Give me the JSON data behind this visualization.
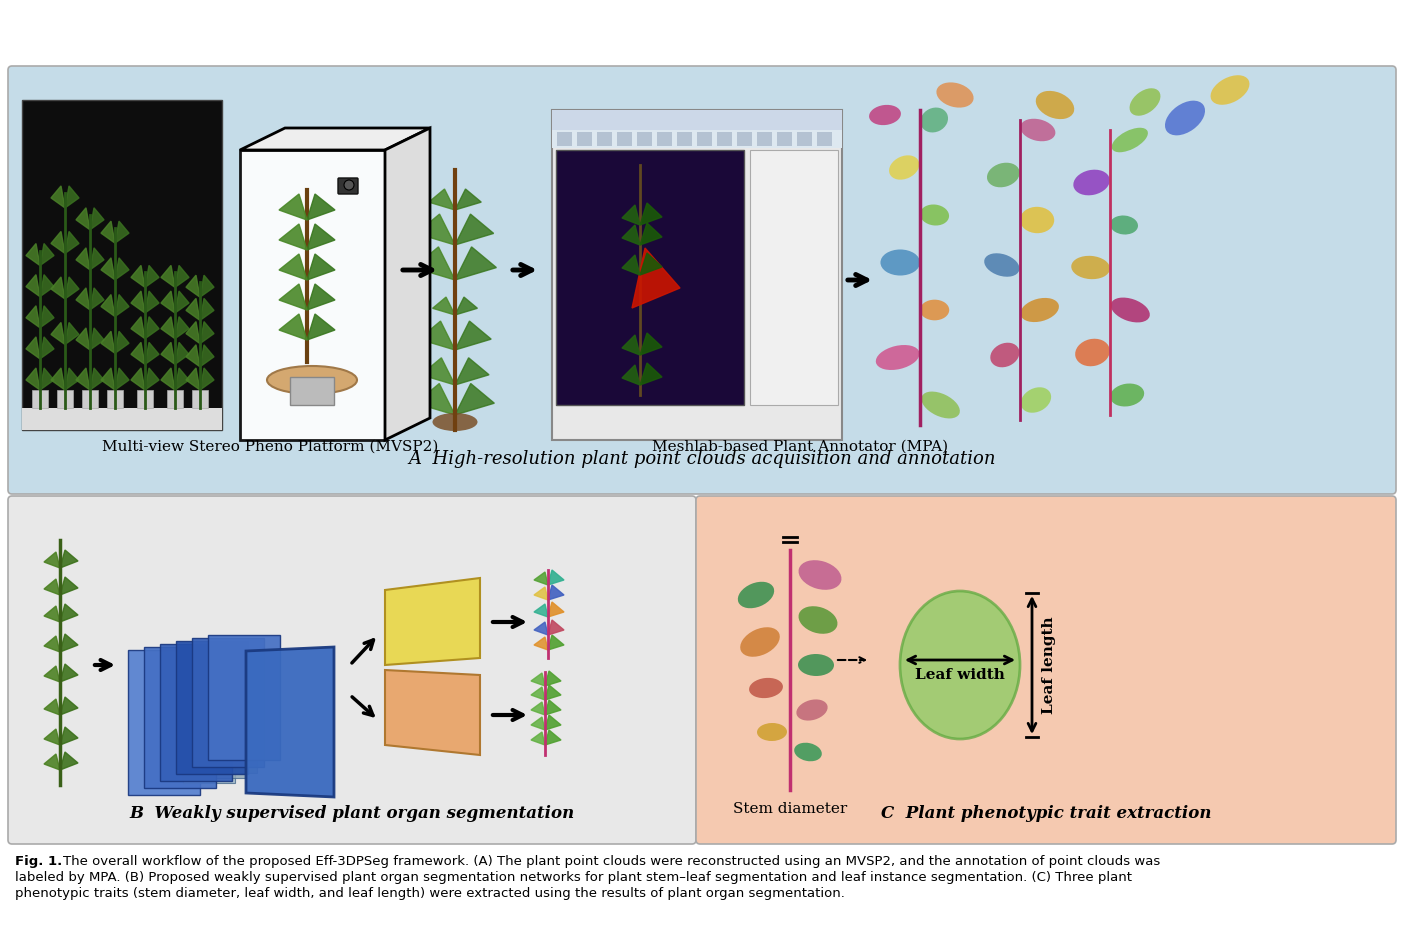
{
  "panel_A_bg": "#c5dce8",
  "panel_B_bg": "#e8e8e8",
  "panel_C_bg": "#f5c9b0",
  "label_A": "A  High-resolution plant point clouds acquisition and annotation",
  "label_B": "B  Weakly supervised plant organ segmentation",
  "label_C": "C  Plant phenotypic trait extraction",
  "mvsp2_label": "Multi-view Stereo Pheno Platform (MVSP2)",
  "mpa_label": "Meshlab-based Plant Annotator (MPA)",
  "stem_label": "Stem diameter",
  "leaf_width_label": "Leaf width",
  "leaf_length_label": "Leaf length",
  "caption_bold": "Fig. 1.",
  "caption_rest": "The overall workflow of the proposed Eff-3DPSeg framework. (A) The plant point clouds were reconstructed using an MVSP2, and the annotation of point clouds was\nlabeled by MPA. (B) Proposed weakly supervised plant organ segmentation networks for plant stem–leaf segmentation and leaf instance segmentation. (C) Three plant\nphenotypic traits (stem diameter, leaf width, and leaf length) were extracted using the results of plant organ segmentation.",
  "white": "#ffffff",
  "black": "#000000",
  "blue1": "#4a7fd4",
  "blue2": "#3060b0",
  "gray1": "#9ab0c0",
  "orange_panel": "#e8a870",
  "yellow_panel": "#e8d855",
  "dark_bg": "#1a1020",
  "purple_bg": "#2a1848"
}
